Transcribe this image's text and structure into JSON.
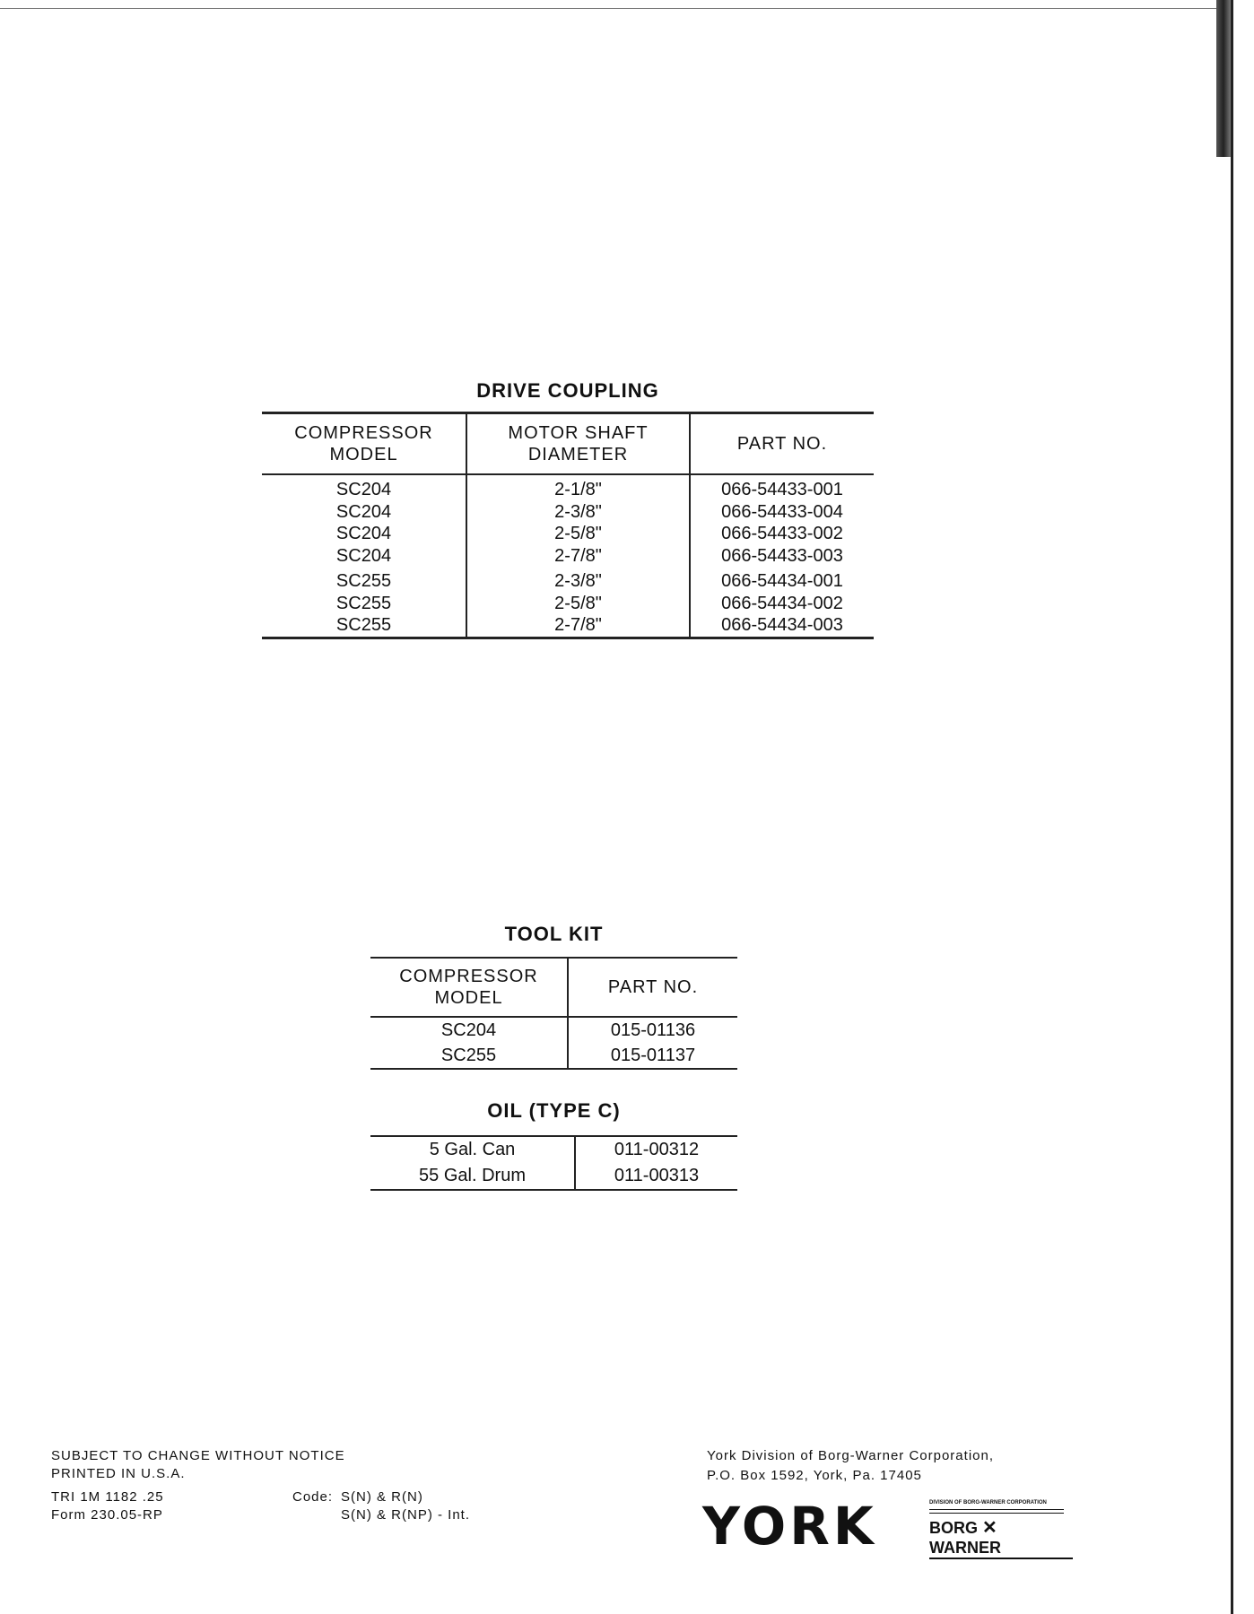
{
  "drive_coupling": {
    "title": "DRIVE COUPLING",
    "headers": [
      "COMPRESSOR MODEL",
      "MOTOR SHAFT DIAMETER",
      "PART NO."
    ],
    "rows": [
      [
        "SC204",
        "2-1/8\"",
        "066-54433-001"
      ],
      [
        "SC204",
        "2-3/8\"",
        "066-54433-004"
      ],
      [
        "SC204",
        "2-5/8\"",
        "066-54433-002"
      ],
      [
        "SC204",
        "2-7/8\"",
        "066-54433-003"
      ],
      [
        "SC255",
        "2-3/8\"",
        "066-54434-001"
      ],
      [
        "SC255",
        "2-5/8\"",
        "066-54434-002"
      ],
      [
        "SC255",
        "2-7/8\"",
        "066-54434-003"
      ]
    ]
  },
  "tool_kit": {
    "title": "TOOL KIT",
    "headers": [
      "COMPRESSOR MODEL",
      "PART NO."
    ],
    "rows": [
      [
        "SC204",
        "015-01136"
      ],
      [
        "SC255",
        "015-01137"
      ]
    ]
  },
  "oil": {
    "title": "OIL (TYPE C)",
    "rows": [
      [
        "5 Gal. Can",
        "011-00312"
      ],
      [
        "55 Gal. Drum",
        "011-00313"
      ]
    ]
  },
  "footer": {
    "notice": "SUBJECT TO CHANGE WITHOUT NOTICE",
    "printed": "PRINTED IN U.S.A.",
    "tri": "TRI  1M  1182  .25",
    "form": "Form  230.05-RP",
    "code_label": "Code:",
    "code_1": "S(N) & R(N)",
    "code_2": "S(N) & R(NP) - Int.",
    "address_1": "York Division of Borg-Warner Corporation,",
    "address_2": "P.O. Box 1592, York, Pa.  17405"
  },
  "logo": {
    "york": "YORK",
    "division": "DIVISION OF BORG-WARNER CORPORATION",
    "borg": "BORG",
    "warner": "WARNER"
  }
}
